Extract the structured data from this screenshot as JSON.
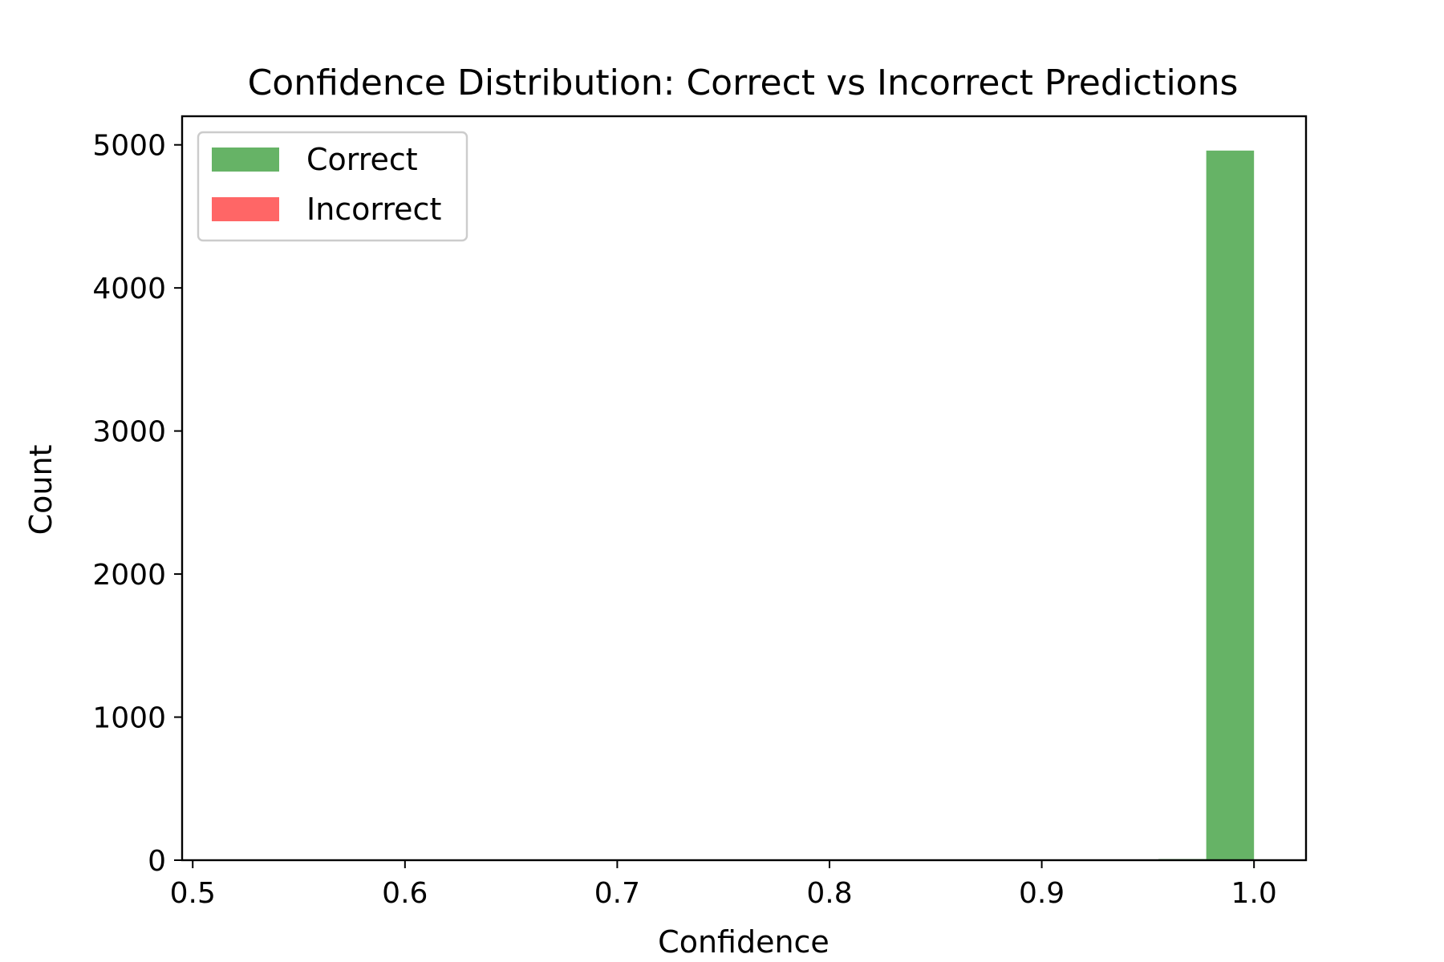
{
  "chart_data": {
    "type": "bar",
    "title": "Confidence Distribution: Correct vs Incorrect Predictions",
    "xlabel": "Confidence",
    "ylabel": "Count",
    "xlim": [
      0.495,
      1.0245
    ],
    "ylim": [
      0,
      5200
    ],
    "xticks": [
      0.5,
      0.6,
      0.7,
      0.8,
      0.9,
      1.0
    ],
    "xtick_labels": [
      "0.5",
      "0.6",
      "0.7",
      "0.8",
      "0.9",
      "1.0"
    ],
    "yticks": [
      0,
      1000,
      2000,
      3000,
      4000,
      5000
    ],
    "ytick_labels": [
      "0",
      "1000",
      "2000",
      "3000",
      "4000",
      "5000"
    ],
    "grid": false,
    "legend": {
      "placement": "upper-left",
      "entries": [
        "Correct",
        "Incorrect"
      ]
    },
    "series": [
      {
        "name": "Correct",
        "color": "#008000",
        "alpha": 0.6,
        "bins": [
          {
            "x0": 0.955,
            "x1": 0.9775,
            "count": 8
          },
          {
            "x0": 0.9775,
            "x1": 1.0,
            "count": 4960
          }
        ]
      },
      {
        "name": "Incorrect",
        "color": "#ff0000",
        "alpha": 0.6,
        "bins": []
      }
    ]
  }
}
